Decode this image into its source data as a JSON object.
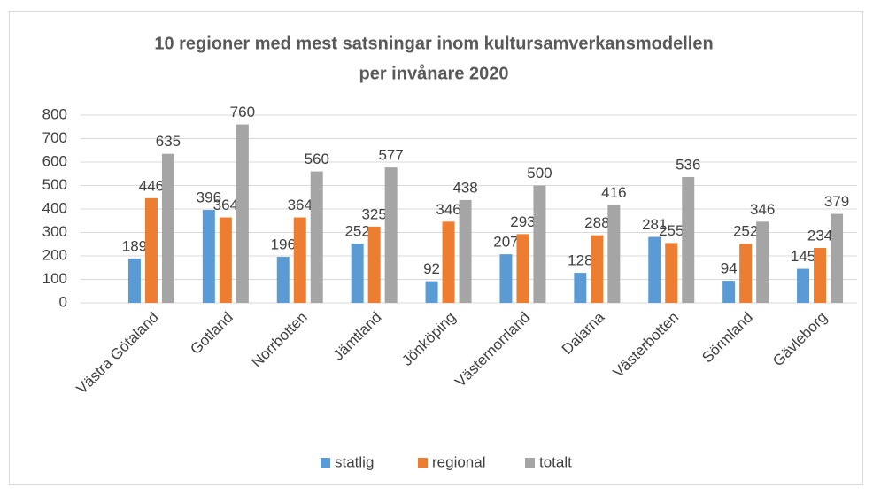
{
  "chart_data": {
    "type": "bar",
    "title": [
      "10 regioner med mest satsningar inom kultursamverkansmodellen",
      "per invånare 2020"
    ],
    "categories": [
      "Västra Götaland",
      "Gotland",
      "Norrbotten",
      "Jämtland",
      "Jönköping",
      "Västernorrland",
      "Dalarna",
      "Västerbotten",
      "Sörmland",
      "Gävleborg"
    ],
    "series": [
      {
        "name": "statlig",
        "color": "#5b9bd5",
        "values": [
          189,
          396,
          196,
          252,
          92,
          207,
          128,
          281,
          94,
          145
        ]
      },
      {
        "name": "regional",
        "color": "#ed7d31",
        "values": [
          446,
          364,
          364,
          325,
          346,
          293,
          288,
          255,
          252,
          234
        ]
      },
      {
        "name": "totalt",
        "color": "#a5a5a5",
        "values": [
          635,
          760,
          560,
          577,
          438,
          500,
          416,
          536,
          346,
          379
        ]
      }
    ],
    "ylim": [
      0,
      800
    ],
    "yticks": [
      0,
      100,
      200,
      300,
      400,
      500,
      600,
      700,
      800
    ],
    "grid": true,
    "legend": "bottom"
  }
}
